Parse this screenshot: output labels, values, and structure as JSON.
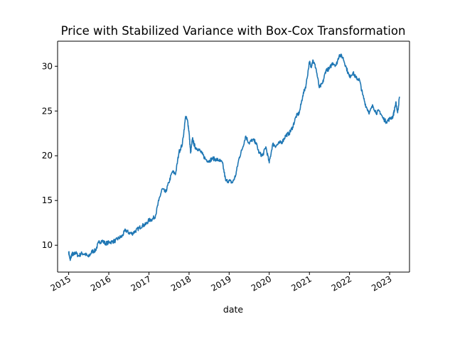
{
  "chart_data": {
    "type": "line",
    "title": "Price with Stabilized Variance with Box-Cox Transformation",
    "xlabel": "date",
    "ylabel": "",
    "xlim": [
      "2014-09-22",
      "2023-07-01"
    ],
    "ylim": [
      7.0,
      32.8
    ],
    "x_ticks": [
      "2015",
      "2016",
      "2017",
      "2018",
      "2019",
      "2020",
      "2021",
      "2022",
      "2023"
    ],
    "y_ticks": [
      10,
      15,
      20,
      25,
      30
    ],
    "grid": false,
    "legend": "none",
    "series_color": "#1f77b4",
    "series": [
      {
        "x": [
          "2015-01-01",
          "2015-01-15",
          "2015-02-01",
          "2015-02-15",
          "2015-03-01",
          "2015-04-01",
          "2015-05-01",
          "2015-06-01",
          "2015-07-01",
          "2015-08-01",
          "2015-09-01",
          "2015-10-01",
          "2015-11-01",
          "2015-12-01",
          "2016-01-01",
          "2016-02-01",
          "2016-03-01",
          "2016-04-01",
          "2016-05-01",
          "2016-06-01",
          "2016-07-01",
          "2016-08-01",
          "2016-09-01",
          "2016-10-01",
          "2016-11-01",
          "2016-12-01",
          "2017-01-01",
          "2017-02-01",
          "2017-03-01",
          "2017-04-01",
          "2017-05-01",
          "2017-06-01",
          "2017-07-01",
          "2017-08-01",
          "2017-09-01",
          "2017-10-01",
          "2017-11-01",
          "2017-12-01",
          "2017-12-20",
          "2018-01-01",
          "2018-01-15",
          "2018-02-01",
          "2018-02-15",
          "2018-03-01",
          "2018-04-01",
          "2018-05-01",
          "2018-06-01",
          "2018-07-01",
          "2018-08-01",
          "2018-09-01",
          "2018-10-01",
          "2018-11-01",
          "2018-12-01",
          "2019-01-01",
          "2019-02-01",
          "2019-03-01",
          "2019-04-01",
          "2019-05-01",
          "2019-06-01",
          "2019-07-01",
          "2019-08-01",
          "2019-09-01",
          "2019-10-01",
          "2019-11-01",
          "2019-12-01",
          "2020-01-01",
          "2020-02-01",
          "2020-03-01",
          "2020-04-01",
          "2020-05-01",
          "2020-06-01",
          "2020-07-01",
          "2020-08-01",
          "2020-09-01",
          "2020-10-01",
          "2020-11-01",
          "2020-12-01",
          "2021-01-01",
          "2021-01-15",
          "2021-02-01",
          "2021-03-01",
          "2021-04-01",
          "2021-05-01",
          "2021-06-01",
          "2021-07-01",
          "2021-08-01",
          "2021-09-01",
          "2021-10-01",
          "2021-11-01",
          "2021-12-01",
          "2022-01-01",
          "2022-02-01",
          "2022-03-01",
          "2022-04-01",
          "2022-05-01",
          "2022-06-01",
          "2022-07-01",
          "2022-08-01",
          "2022-09-01",
          "2022-10-01",
          "2022-11-01",
          "2022-12-01",
          "2023-01-01",
          "2023-02-01",
          "2023-02-20",
          "2023-03-01",
          "2023-03-15",
          "2023-04-01"
        ],
        "y": [
          9.3,
          8.3,
          9.1,
          8.9,
          9.2,
          8.8,
          9.1,
          9.0,
          8.7,
          9.3,
          9.4,
          10.3,
          10.5,
          10.2,
          10.3,
          10.4,
          10.5,
          10.8,
          11.0,
          11.7,
          11.4,
          11.3,
          11.6,
          11.9,
          12.2,
          12.3,
          12.8,
          12.9,
          13.3,
          15.0,
          16.3,
          15.9,
          17.0,
          18.2,
          18.0,
          20.4,
          21.3,
          24.4,
          23.8,
          22.6,
          20.3,
          21.9,
          21.3,
          20.9,
          20.7,
          20.2,
          19.6,
          19.4,
          19.7,
          19.6,
          19.5,
          19.2,
          17.2,
          17.2,
          17.0,
          17.8,
          19.7,
          20.8,
          22.2,
          21.4,
          21.8,
          21.5,
          20.3,
          20.0,
          21.0,
          19.2,
          21.3,
          21.1,
          21.4,
          21.6,
          22.3,
          22.5,
          23.2,
          24.4,
          24.8,
          26.7,
          27.9,
          30.5,
          29.9,
          30.7,
          29.8,
          27.6,
          28.1,
          29.6,
          29.7,
          30.4,
          30.1,
          31.3,
          31.0,
          29.9,
          28.8,
          29.3,
          28.7,
          28.5,
          26.8,
          25.5,
          24.8,
          25.6,
          24.8,
          25.0,
          24.2,
          23.8,
          24.1,
          24.4,
          25.5,
          25.9,
          24.8,
          26.6
        ]
      }
    ]
  }
}
